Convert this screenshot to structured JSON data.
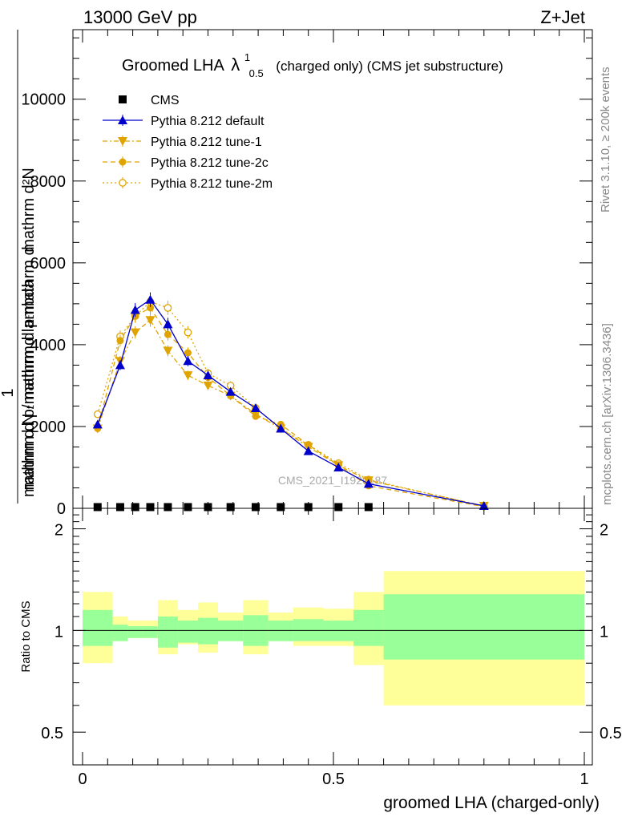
{
  "header": {
    "left": "13000 GeV pp",
    "right": "Z+Jet"
  },
  "side_labels": {
    "rivet": "Rivet 3.1.10, ≥ 200k events",
    "mcplots": "mcplots.cern.ch [arXiv:1306.3436]"
  },
  "watermark": "CMS_2021_I1920187",
  "colors": {
    "cms": "#000000",
    "default": "#0000cc",
    "tunes": "#e0a400",
    "band_inner": "#99ff99",
    "band_outer": "#ffff99"
  },
  "chart_data": [
    {
      "type": "scatter",
      "panel": "main",
      "title_main": "Groomed LHA",
      "title_symbol": "λ",
      "title_sup": "1",
      "title_sub": "0.5",
      "title_rest": "(charged only) (CMS jet substructure)",
      "ylabel_parts": [
        "mathrm d",
        "N",
        "1",
        "mathrm d N / mathrm d p",
        "T",
        "mathrm d p",
        "mathrm d lambda",
        "mathrm d p"
      ],
      "ylabel_top": "mathrm d²N",
      "ylabel_mid": "mathrm d pₜmathrm d lambda",
      "ylabel_bottom": "mathrm d N / mathrm d pₜmathrm d",
      "ylabel_one": "1",
      "xlim": [
        0,
        1
      ],
      "ylim": [
        0,
        11700
      ],
      "y_ticks": [
        0,
        2000,
        4000,
        6000,
        8000,
        10000
      ],
      "y_tick_labels": [
        "0",
        "2000",
        "4000",
        "6000",
        "8000",
        "10000"
      ],
      "legend_position": "top-left",
      "series": [
        {
          "name": "CMS",
          "marker": "square",
          "x": [
            0.03,
            0.075,
            0.105,
            0.135,
            0.17,
            0.21,
            0.25,
            0.295,
            0.345,
            0.395,
            0.45,
            0.51,
            0.57
          ],
          "y": [
            30,
            30,
            30,
            30,
            30,
            30,
            30,
            30,
            30,
            30,
            30,
            30,
            30
          ]
        },
        {
          "name": "Pythia 8.212 default",
          "marker": "triangle-up",
          "x": [
            0.03,
            0.075,
            0.105,
            0.135,
            0.17,
            0.21,
            0.25,
            0.295,
            0.345,
            0.395,
            0.45,
            0.51,
            0.57,
            0.8
          ],
          "y": [
            2050,
            3500,
            4850,
            5100,
            4500,
            3600,
            3250,
            2850,
            2450,
            1950,
            1400,
            1000,
            600,
            60
          ]
        },
        {
          "name": "Pythia 8.212 tune-1",
          "marker": "triangle-down",
          "x": [
            0.03,
            0.075,
            0.105,
            0.135,
            0.17,
            0.21,
            0.25,
            0.295,
            0.345,
            0.395,
            0.45,
            0.51,
            0.57,
            0.8
          ],
          "y": [
            1950,
            3600,
            4300,
            4600,
            3850,
            3250,
            3000,
            2750,
            2300,
            1950,
            1500,
            1050,
            680,
            60
          ]
        },
        {
          "name": "Pythia 8.212 tune-2c",
          "marker": "circle-filled",
          "x": [
            0.03,
            0.075,
            0.105,
            0.135,
            0.17,
            0.21,
            0.25,
            0.295,
            0.345,
            0.395,
            0.45,
            0.51,
            0.57,
            0.8
          ],
          "y": [
            1950,
            4100,
            4700,
            4900,
            4250,
            3800,
            3200,
            2750,
            2250,
            2050,
            1550,
            1050,
            550,
            40
          ]
        },
        {
          "name": "Pythia 8.212 tune-2m",
          "marker": "circle-open",
          "x": [
            0.03,
            0.075,
            0.105,
            0.135,
            0.17,
            0.21,
            0.25,
            0.295,
            0.345,
            0.395,
            0.45,
            0.51,
            0.57,
            0.8
          ],
          "y": [
            2300,
            4200,
            4700,
            5050,
            4900,
            4300,
            3300,
            3000,
            2450,
            1950,
            1550,
            1100,
            700,
            50
          ]
        }
      ]
    },
    {
      "type": "area",
      "panel": "ratio",
      "ylabel": "Ratio to CMS",
      "xlabel": "groomed LHA (charged-only)",
      "xlim": [
        0,
        1
      ],
      "ylim": [
        0.4,
        2.3
      ],
      "y_ticks": [
        0.5,
        1,
        2
      ],
      "y_tick_labels": [
        "0.5",
        "1",
        "2"
      ],
      "x_ticks": [
        0,
        0.5,
        1
      ],
      "x_tick_labels": [
        "0",
        "0.5",
        "1"
      ],
      "bins": [
        {
          "x0": 0.0,
          "x1": 0.06,
          "inner_lo": 0.9,
          "inner_hi": 1.15,
          "outer_lo": 0.8,
          "outer_hi": 1.3
        },
        {
          "x0": 0.06,
          "x1": 0.09,
          "inner_lo": 0.93,
          "inner_hi": 1.04,
          "outer_lo": 0.93,
          "outer_hi": 1.1
        },
        {
          "x0": 0.09,
          "x1": 0.12,
          "inner_lo": 0.95,
          "inner_hi": 1.03,
          "outer_lo": 0.95,
          "outer_hi": 1.07
        },
        {
          "x0": 0.12,
          "x1": 0.15,
          "inner_lo": 0.95,
          "inner_hi": 1.03,
          "outer_lo": 0.95,
          "outer_hi": 1.07
        },
        {
          "x0": 0.15,
          "x1": 0.19,
          "inner_lo": 0.89,
          "inner_hi": 1.1,
          "outer_lo": 0.85,
          "outer_hi": 1.23
        },
        {
          "x0": 0.19,
          "x1": 0.23,
          "inner_lo": 0.92,
          "inner_hi": 1.07,
          "outer_lo": 0.91,
          "outer_hi": 1.15
        },
        {
          "x0": 0.23,
          "x1": 0.27,
          "inner_lo": 0.91,
          "inner_hi": 1.09,
          "outer_lo": 0.86,
          "outer_hi": 1.21
        },
        {
          "x0": 0.27,
          "x1": 0.32,
          "inner_lo": 0.93,
          "inner_hi": 1.07,
          "outer_lo": 0.93,
          "outer_hi": 1.13
        },
        {
          "x0": 0.32,
          "x1": 0.37,
          "inner_lo": 0.9,
          "inner_hi": 1.11,
          "outer_lo": 0.85,
          "outer_hi": 1.23
        },
        {
          "x0": 0.37,
          "x1": 0.42,
          "inner_lo": 0.93,
          "inner_hi": 1.07,
          "outer_lo": 0.93,
          "outer_hi": 1.13
        },
        {
          "x0": 0.42,
          "x1": 0.48,
          "inner_lo": 0.93,
          "inner_hi": 1.08,
          "outer_lo": 0.9,
          "outer_hi": 1.17
        },
        {
          "x0": 0.48,
          "x1": 0.54,
          "inner_lo": 0.93,
          "inner_hi": 1.07,
          "outer_lo": 0.9,
          "outer_hi": 1.16
        },
        {
          "x0": 0.54,
          "x1": 0.6,
          "inner_lo": 0.9,
          "inner_hi": 1.15,
          "outer_lo": 0.79,
          "outer_hi": 1.3
        },
        {
          "x0": 0.6,
          "x1": 1.0,
          "inner_lo": 0.82,
          "inner_hi": 1.28,
          "outer_lo": 0.6,
          "outer_hi": 1.5
        }
      ]
    }
  ]
}
